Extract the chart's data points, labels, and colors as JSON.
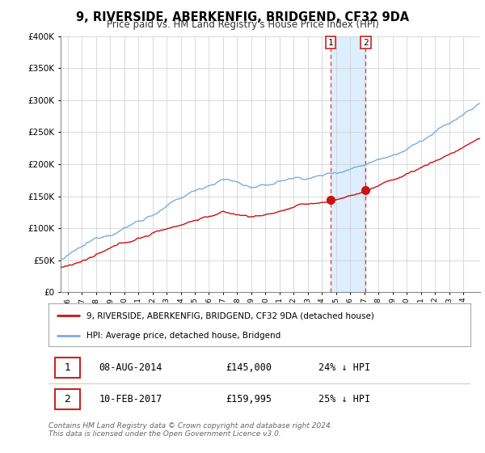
{
  "title": "9, RIVERSIDE, ABERKENFIG, BRIDGEND, CF32 9DA",
  "subtitle": "Price paid vs. HM Land Registry's House Price Index (HPI)",
  "ytick_values": [
    0,
    50000,
    100000,
    150000,
    200000,
    250000,
    300000,
    350000,
    400000
  ],
  "ylim": [
    0,
    400000
  ],
  "xlim_start": 1995.5,
  "xlim_end": 2025.2,
  "transaction1_date": 2014.6,
  "transaction1_price": 145000,
  "transaction2_date": 2017.1,
  "transaction2_price": 159995,
  "hpi_color": "#7aade0",
  "price_color": "#cc1111",
  "shaded_region_color": "#ddeeff",
  "vline_color": "#ee3333",
  "legend_house_label": "9, RIVERSIDE, ABERKENFIG, BRIDGEND, CF32 9DA (detached house)",
  "legend_hpi_label": "HPI: Average price, detached house, Bridgend",
  "table_row1": [
    "1",
    "08-AUG-2014",
    "£145,000",
    "24% ↓ HPI"
  ],
  "table_row2": [
    "2",
    "10-FEB-2017",
    "£159,995",
    "25% ↓ HPI"
  ],
  "footer": "Contains HM Land Registry data © Crown copyright and database right 2024.\nThis data is licensed under the Open Government Licence v3.0.",
  "background_color": "#ffffff",
  "grid_color": "#cccccc"
}
